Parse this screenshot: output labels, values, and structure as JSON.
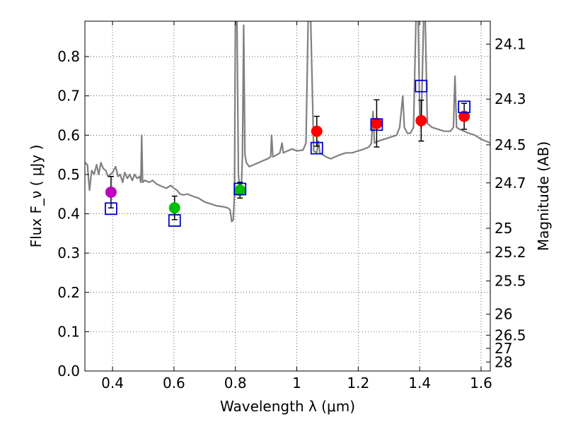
{
  "chart_data": {
    "type": "scatter",
    "title": "",
    "xlabel": "Wavelength  λ (μm)",
    "ylabel": "Flux  F_ν  ( μJy )",
    "ylabel_right": "Magnitude (AB)",
    "xlim": [
      0.31,
      1.63
    ],
    "ylim": [
      0.0,
      0.89
    ],
    "grid": true,
    "grid_style": "dotted",
    "xticks": [
      {
        "v": 0.4,
        "label": "0.4"
      },
      {
        "v": 0.6,
        "label": "0.6"
      },
      {
        "v": 0.8,
        "label": "0.8"
      },
      {
        "v": 1.0,
        "label": "1"
      },
      {
        "v": 1.2,
        "label": "1.2"
      },
      {
        "v": 1.4,
        "label": "1.4"
      },
      {
        "v": 1.6,
        "label": "1.6"
      }
    ],
    "yticks": [
      {
        "v": 0.0,
        "label": "0.0"
      },
      {
        "v": 0.1,
        "label": "0.1"
      },
      {
        "v": 0.2,
        "label": "0.2"
      },
      {
        "v": 0.3,
        "label": "0.3"
      },
      {
        "v": 0.4,
        "label": "0.4"
      },
      {
        "v": 0.5,
        "label": "0.5"
      },
      {
        "v": 0.6,
        "label": "0.6"
      },
      {
        "v": 0.7,
        "label": "0.7"
      },
      {
        "v": 0.8,
        "label": "0.8"
      }
    ],
    "right_ticks": [
      {
        "mag": 24.1,
        "label": "24.1"
      },
      {
        "mag": 24.3,
        "label": "24.3"
      },
      {
        "mag": 24.5,
        "label": "24.5"
      },
      {
        "mag": 24.7,
        "label": "24.7"
      },
      {
        "mag": 25.0,
        "label": "25"
      },
      {
        "mag": 25.2,
        "label": "25.2"
      },
      {
        "mag": 25.5,
        "label": "25.5"
      },
      {
        "mag": 26.0,
        "label": "26"
      },
      {
        "mag": 26.5,
        "label": "26.5"
      },
      {
        "mag": 27.0,
        "label": "27"
      },
      {
        "mag": 28.0,
        "label": "28"
      }
    ],
    "series": [
      {
        "kind": "model_spectrum",
        "color": "#808080",
        "points": [
          [
            0.31,
            0.53
          ],
          [
            0.318,
            0.525
          ],
          [
            0.325,
            0.46
          ],
          [
            0.332,
            0.51
          ],
          [
            0.34,
            0.5
          ],
          [
            0.348,
            0.525
          ],
          [
            0.355,
            0.5
          ],
          [
            0.362,
            0.53
          ],
          [
            0.37,
            0.515
          ],
          [
            0.378,
            0.51
          ],
          [
            0.385,
            0.495
          ],
          [
            0.393,
            0.5
          ],
          [
            0.4,
            0.505
          ],
          [
            0.41,
            0.52
          ],
          [
            0.418,
            0.495
          ],
          [
            0.425,
            0.5
          ],
          [
            0.433,
            0.48
          ],
          [
            0.44,
            0.505
          ],
          [
            0.448,
            0.49
          ],
          [
            0.456,
            0.5
          ],
          [
            0.464,
            0.485
          ],
          [
            0.472,
            0.5
          ],
          [
            0.48,
            0.49
          ],
          [
            0.488,
            0.495
          ],
          [
            0.492,
            0.48
          ],
          [
            0.495,
            0.6
          ],
          [
            0.498,
            0.48
          ],
          [
            0.505,
            0.485
          ],
          [
            0.52,
            0.48
          ],
          [
            0.53,
            0.485
          ],
          [
            0.545,
            0.475
          ],
          [
            0.56,
            0.47
          ],
          [
            0.575,
            0.465
          ],
          [
            0.59,
            0.472
          ],
          [
            0.6,
            0.465
          ],
          [
            0.61,
            0.46
          ],
          [
            0.62,
            0.45
          ],
          [
            0.63,
            0.448
          ],
          [
            0.645,
            0.45
          ],
          [
            0.66,
            0.445
          ],
          [
            0.68,
            0.44
          ],
          [
            0.7,
            0.43
          ],
          [
            0.72,
            0.425
          ],
          [
            0.74,
            0.42
          ],
          [
            0.76,
            0.418
          ],
          [
            0.775,
            0.415
          ],
          [
            0.783,
            0.41
          ],
          [
            0.788,
            0.38
          ],
          [
            0.793,
            0.385
          ],
          [
            0.797,
            0.45
          ],
          [
            0.8,
            0.9
          ],
          [
            0.805,
            0.9
          ],
          [
            0.81,
            0.5
          ],
          [
            0.815,
            0.46
          ],
          [
            0.82,
            0.48
          ],
          [
            0.823,
            0.55
          ],
          [
            0.827,
            0.88
          ],
          [
            0.831,
            0.55
          ],
          [
            0.836,
            0.53
          ],
          [
            0.845,
            0.52
          ],
          [
            0.86,
            0.525
          ],
          [
            0.875,
            0.53
          ],
          [
            0.89,
            0.535
          ],
          [
            0.905,
            0.54
          ],
          [
            0.915,
            0.545
          ],
          [
            0.918,
            0.6
          ],
          [
            0.922,
            0.545
          ],
          [
            0.935,
            0.55
          ],
          [
            0.945,
            0.555
          ],
          [
            0.952,
            0.58
          ],
          [
            0.956,
            0.555
          ],
          [
            0.97,
            0.56
          ],
          [
            0.985,
            0.565
          ],
          [
            1.0,
            0.56
          ],
          [
            1.02,
            0.562
          ],
          [
            1.03,
            0.58
          ],
          [
            1.037,
            0.9
          ],
          [
            1.045,
            0.9
          ],
          [
            1.055,
            0.56
          ],
          [
            1.065,
            0.555
          ],
          [
            1.07,
            0.585
          ],
          [
            1.075,
            0.555
          ],
          [
            1.085,
            0.55
          ],
          [
            1.095,
            0.545
          ],
          [
            1.11,
            0.54
          ],
          [
            1.125,
            0.545
          ],
          [
            1.14,
            0.55
          ],
          [
            1.16,
            0.555
          ],
          [
            1.18,
            0.555
          ],
          [
            1.2,
            0.56
          ],
          [
            1.22,
            0.565
          ],
          [
            1.235,
            0.57
          ],
          [
            1.243,
            0.58
          ],
          [
            1.248,
            0.66
          ],
          [
            1.253,
            0.58
          ],
          [
            1.265,
            0.585
          ],
          [
            1.285,
            0.59
          ],
          [
            1.305,
            0.595
          ],
          [
            1.325,
            0.6
          ],
          [
            1.335,
            0.62
          ],
          [
            1.345,
            0.7
          ],
          [
            1.35,
            0.62
          ],
          [
            1.36,
            0.605
          ],
          [
            1.37,
            0.605
          ],
          [
            1.38,
            0.62
          ],
          [
            1.388,
            0.9
          ],
          [
            1.395,
            0.9
          ],
          [
            1.4,
            0.65
          ],
          [
            1.405,
            0.62
          ],
          [
            1.413,
            0.9
          ],
          [
            1.418,
            0.9
          ],
          [
            1.425,
            0.63
          ],
          [
            1.44,
            0.62
          ],
          [
            1.46,
            0.615
          ],
          [
            1.48,
            0.61
          ],
          [
            1.5,
            0.61
          ],
          [
            1.51,
            0.62
          ],
          [
            1.515,
            0.75
          ],
          [
            1.52,
            0.62
          ],
          [
            1.53,
            0.615
          ],
          [
            1.545,
            0.61
          ],
          [
            1.56,
            0.605
          ],
          [
            1.58,
            0.6
          ],
          [
            1.6,
            0.59
          ],
          [
            1.615,
            0.585
          ],
          [
            1.63,
            0.58
          ]
        ]
      },
      {
        "kind": "observed",
        "points": [
          {
            "x": 0.395,
            "y": 0.455,
            "err": 0.04,
            "color": "#bf00bf"
          },
          {
            "x": 0.602,
            "y": 0.415,
            "err": 0.03,
            "color": "#00c000"
          },
          {
            "x": 0.815,
            "y": 0.46,
            "err": 0.02,
            "color": "#00c000"
          },
          {
            "x": 1.065,
            "y": 0.61,
            "err": 0.038,
            "color": "#ff0000"
          },
          {
            "x": 1.26,
            "y": 0.63,
            "err": 0.06,
            "color": "#ff0000"
          },
          {
            "x": 1.405,
            "y": 0.637,
            "err": 0.052,
            "color": "#ff0000"
          },
          {
            "x": 1.545,
            "y": 0.648,
            "err": 0.033,
            "color": "#ff0000"
          }
        ]
      },
      {
        "kind": "model_photometry",
        "color": "#0000cc",
        "points": [
          [
            0.395,
            0.413
          ],
          [
            0.602,
            0.383
          ],
          [
            0.815,
            0.463
          ],
          [
            1.065,
            0.567
          ],
          [
            1.26,
            0.627
          ],
          [
            1.405,
            0.725
          ],
          [
            1.545,
            0.672
          ]
        ]
      }
    ]
  }
}
